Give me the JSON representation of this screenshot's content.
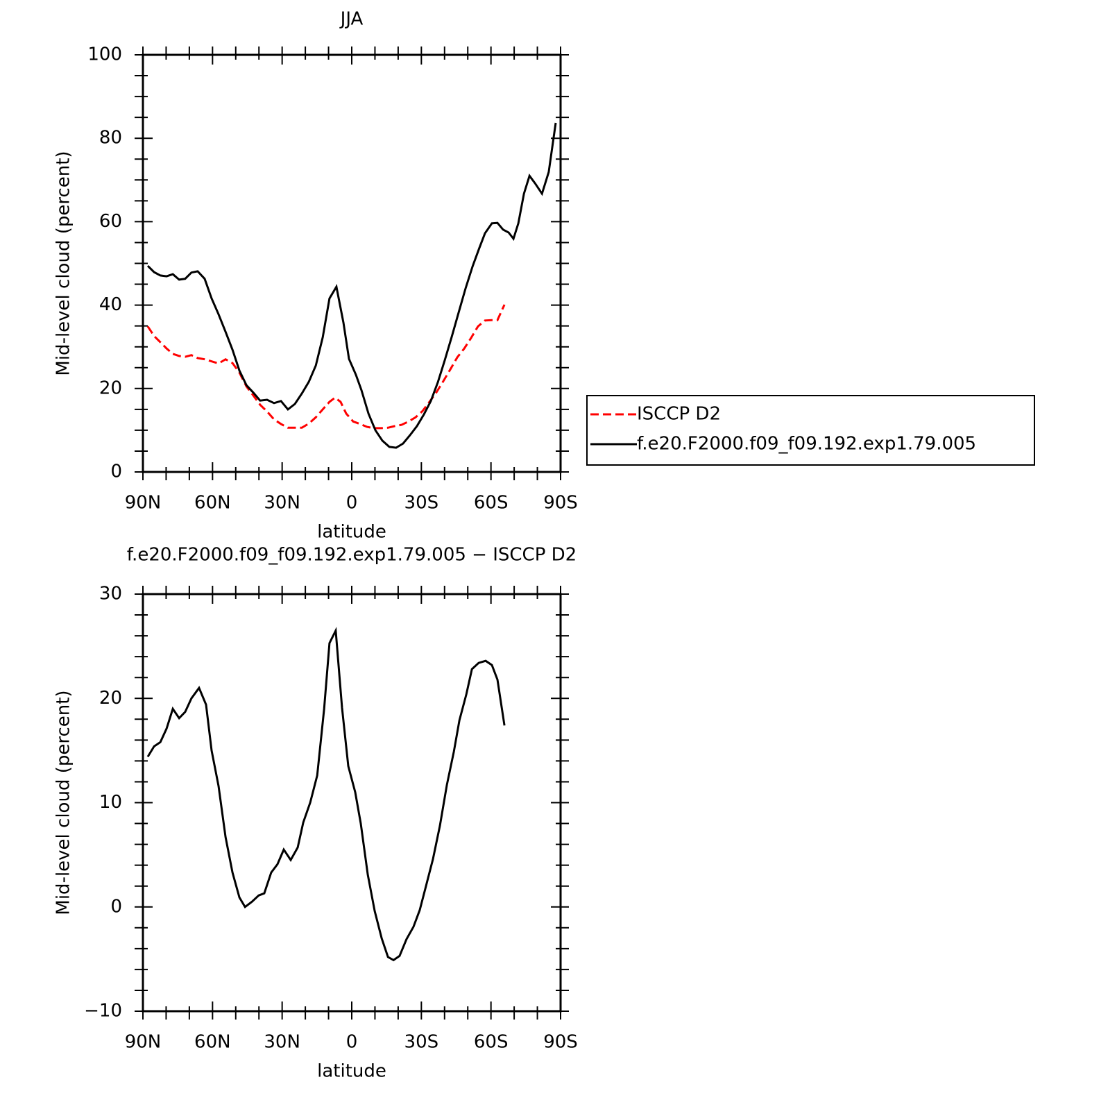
{
  "chart_data": [
    {
      "type": "line",
      "title": "JJA",
      "xlabel": "latitude",
      "ylabel": "Mid-level cloud (percent)",
      "xlim": [
        90,
        -90
      ],
      "xticks": [
        {
          "value": 90,
          "label": "90N"
        },
        {
          "value": 60,
          "label": "60N"
        },
        {
          "value": 30,
          "label": "30N"
        },
        0,
        {
          "value": -30,
          "label": "30S"
        },
        {
          "value": -60,
          "label": "60S"
        },
        {
          "value": -90,
          "label": "90S"
        }
      ],
      "xminorticks": [
        80,
        70,
        50,
        40,
        20,
        10,
        -10,
        -20,
        -40,
        -50,
        -70,
        -80
      ],
      "ylim": [
        0,
        100
      ],
      "yticks": [
        0,
        20,
        40,
        60,
        80,
        100
      ],
      "yminorticks": [
        5,
        10,
        15,
        25,
        30,
        35,
        45,
        50,
        55,
        65,
        70,
        75,
        85,
        90,
        95
      ],
      "legend": "right",
      "series": [
        {
          "name": "ISCCP D2",
          "color": "#ff0000",
          "dash": true,
          "x": [
            87.9,
            85.2,
            82.5,
            79.8,
            77.1,
            74.4,
            71.8,
            69.1,
            66.4,
            63.4,
            60.4,
            57.4,
            54.4,
            51.4,
            48.4,
            45.4,
            42.4,
            39.5,
            36.5,
            33.5,
            30.5,
            27.5,
            24.5,
            21.5,
            18.5,
            15.5,
            12.5,
            9.6,
            7.2,
            4.8,
            2.4,
            -0.6,
            -3.6,
            -6.6,
            -9.6,
            -12.6,
            -15.6,
            -18.6,
            -21.5,
            -24.5,
            -27.5,
            -30.5,
            -33.5,
            -36.5,
            -39.5,
            -42.5,
            -45.5,
            -48.5,
            -51.4,
            -54.4,
            -57.4,
            -60.4,
            -62.8,
            -65.8
          ],
          "values": [
            34.9,
            32.6,
            31.1,
            29.6,
            28.3,
            27.8,
            27.6,
            28.0,
            27.3,
            27.0,
            26.5,
            26.0,
            27.0,
            26.1,
            23.8,
            20.5,
            18.3,
            16.1,
            14.5,
            12.6,
            11.5,
            10.6,
            10.6,
            10.6,
            11.6,
            13.1,
            15.0,
            16.8,
            17.8,
            16.8,
            14.0,
            12.1,
            11.5,
            10.8,
            10.5,
            10.5,
            10.6,
            11.0,
            11.3,
            12.1,
            13.1,
            14.6,
            16.8,
            19.1,
            21.8,
            24.6,
            27.5,
            29.6,
            32.1,
            34.9,
            36.3,
            36.4,
            36.4,
            40.1
          ]
        },
        {
          "name": "f.e20.F2000.f09_f09.192.exp1.79.005",
          "color": "#000000",
          "dash": false,
          "x": [
            87.9,
            85.2,
            82.5,
            79.8,
            77.1,
            74.4,
            71.8,
            69.1,
            66.4,
            63.4,
            60.4,
            57.4,
            54.4,
            51.4,
            48.4,
            45.4,
            42.4,
            39.5,
            36.5,
            33.5,
            30.5,
            27.5,
            24.5,
            21.5,
            18.5,
            15.5,
            12.5,
            9.6,
            6.6,
            3.6,
            1.2,
            -1.8,
            -4.2,
            -7.2,
            -10.2,
            -13.2,
            -16.2,
            -19.1,
            -22.1,
            -25.1,
            -28.1,
            -31.1,
            -34.1,
            -37.1,
            -40.1,
            -43.1,
            -46.1,
            -49.1,
            -52.1,
            -55.0,
            -57.4,
            -60.4,
            -62.8,
            -65.2,
            -67.6,
            -69.7,
            -71.8,
            -74.2,
            -76.6,
            -79.0,
            -82.0,
            -84.9,
            -87.9
          ],
          "values": [
            49.4,
            47.9,
            47.1,
            46.9,
            47.4,
            46.1,
            46.3,
            47.8,
            48.1,
            46.3,
            41.6,
            37.8,
            33.6,
            29.3,
            24.3,
            20.8,
            19.0,
            17.1,
            17.3,
            16.5,
            17.0,
            15.0,
            16.3,
            18.8,
            21.6,
            25.5,
            32.3,
            41.6,
            44.4,
            35.8,
            27.1,
            23.3,
            19.6,
            14.0,
            10.0,
            7.5,
            6.0,
            5.8,
            6.8,
            8.8,
            11.0,
            13.8,
            17.0,
            21.5,
            26.8,
            32.4,
            38.3,
            44.1,
            49.3,
            53.7,
            57.2,
            59.6,
            59.7,
            58.1,
            57.4,
            55.9,
            59.6,
            66.7,
            71.0,
            69.2,
            66.7,
            71.9,
            83.7
          ]
        }
      ]
    },
    {
      "type": "line",
      "title": "f.e20.F2000.f09_f09.192.exp1.79.005 − ISCCP D2",
      "xlabel": "latitude",
      "ylabel": "Mid-level cloud (percent)",
      "xlim": [
        90,
        -90
      ],
      "xticks": [
        {
          "value": 90,
          "label": "90N"
        },
        {
          "value": 60,
          "label": "60N"
        },
        {
          "value": 30,
          "label": "30N"
        },
        0,
        {
          "value": -30,
          "label": "30S"
        },
        {
          "value": -60,
          "label": "60S"
        },
        {
          "value": -90,
          "label": "90S"
        }
      ],
      "xminorticks": [
        80,
        70,
        50,
        40,
        20,
        10,
        -10,
        -20,
        -40,
        -50,
        -70,
        -80
      ],
      "ylim": [
        -10,
        30
      ],
      "yticks": [
        {
          "value": -10,
          "label": "−10"
        },
        0,
        10,
        20,
        30
      ],
      "yminorticks": [
        -8,
        -6,
        -4,
        -2,
        2,
        4,
        6,
        8,
        12,
        14,
        16,
        18,
        22,
        24,
        26,
        28
      ],
      "series": [
        {
          "color": "#000000",
          "dash": false,
          "x": [
            87.9,
            85.2,
            82.5,
            79.8,
            77.1,
            74.4,
            71.8,
            69.1,
            65.8,
            62.8,
            60.4,
            57.4,
            54.4,
            51.4,
            48.4,
            46.0,
            43.0,
            40.1,
            37.7,
            34.7,
            32.0,
            29.3,
            26.3,
            23.3,
            20.9,
            17.9,
            14.9,
            11.9,
            9.6,
            6.9,
            4.2,
            1.5,
            -1.5,
            -3.9,
            -6.9,
            -9.9,
            -12.9,
            -15.6,
            -18.0,
            -20.6,
            -23.6,
            -26.6,
            -29.3,
            -32.0,
            -35.0,
            -38.0,
            -41.0,
            -44.0,
            -46.4,
            -49.4,
            -51.8,
            -54.7,
            -57.7,
            -60.4,
            -62.8,
            -65.8
          ],
          "values": [
            14.4,
            15.4,
            15.8,
            17.1,
            19.0,
            18.1,
            18.7,
            20.0,
            21.0,
            19.4,
            15.0,
            11.6,
            6.7,
            3.3,
            0.9,
            0.0,
            0.5,
            1.1,
            1.3,
            3.3,
            4.1,
            5.5,
            4.5,
            5.7,
            8.1,
            10.0,
            12.6,
            19.0,
            25.3,
            26.5,
            19.1,
            13.5,
            11.0,
            8.0,
            3.1,
            -0.4,
            -3.0,
            -4.8,
            -5.1,
            -4.7,
            -3.1,
            -1.9,
            -0.3,
            2.0,
            4.6,
            7.8,
            11.7,
            14.9,
            17.9,
            20.4,
            22.8,
            23.4,
            23.6,
            23.2,
            21.8,
            17.4
          ]
        }
      ]
    }
  ]
}
